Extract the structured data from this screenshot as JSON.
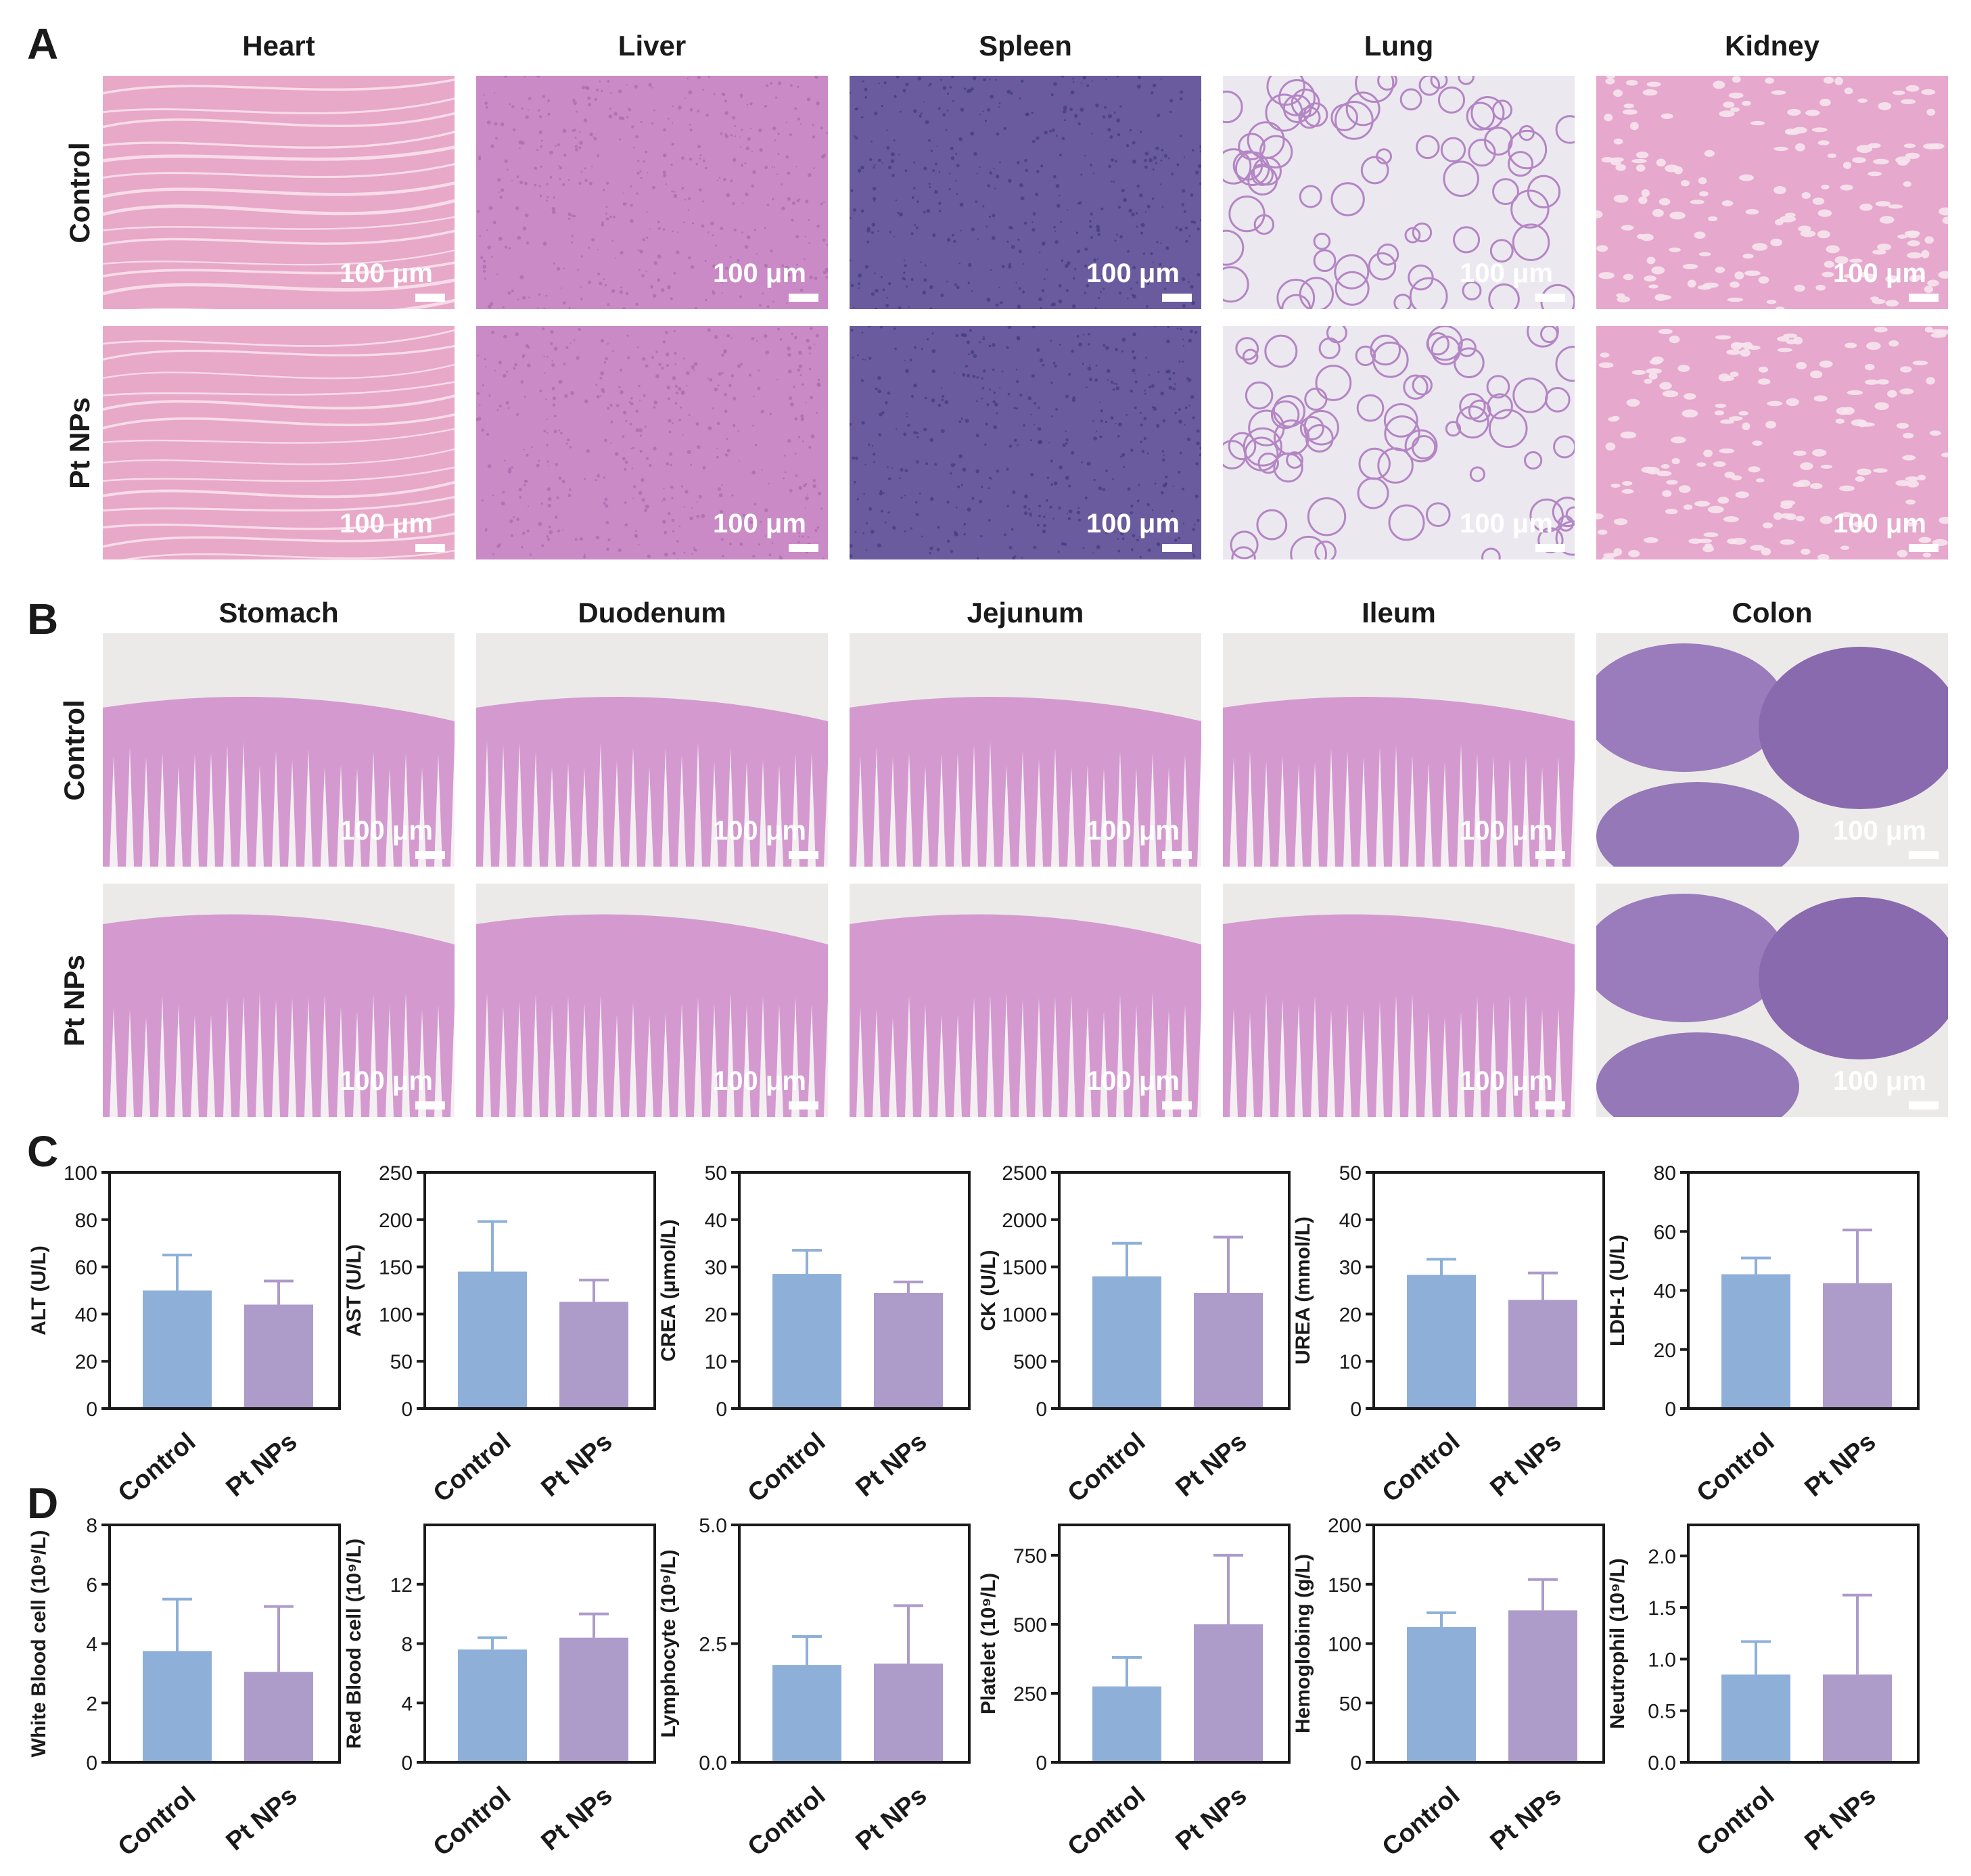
{
  "panel_letters": [
    "A",
    "B",
    "C",
    "D"
  ],
  "histology_A": {
    "organs": [
      "Heart",
      "Liver",
      "Spleen",
      "Lung",
      "Kidney"
    ],
    "rows": [
      "Control",
      "Pt NPs"
    ],
    "scale_label": "100 μm"
  },
  "histology_B": {
    "organs": [
      "Stomach",
      "Duodenum",
      "Jejunum",
      "Ileum",
      "Colon"
    ],
    "rows": [
      "Control",
      "Pt NPs"
    ],
    "scale_label": "100 μm"
  },
  "colors": {
    "control": "#8eb0d8",
    "pt_nps": "#ad9bca"
  },
  "chart_data": [
    {
      "type": "bar",
      "ylabel": "ALT (U/L)",
      "categories": [
        "Control",
        "Pt NPs"
      ],
      "values": [
        50,
        44
      ],
      "errors": [
        15,
        10
      ],
      "ylim": [
        0,
        100
      ],
      "yticks": [
        0,
        20,
        40,
        60,
        80,
        100
      ]
    },
    {
      "type": "bar",
      "ylabel": "AST (U/L)",
      "categories": [
        "Control",
        "Pt NPs"
      ],
      "values": [
        145,
        113
      ],
      "errors": [
        53,
        23
      ],
      "ylim": [
        0,
        250
      ],
      "yticks": [
        0,
        50,
        100,
        150,
        200,
        250
      ]
    },
    {
      "type": "bar",
      "ylabel": "CREA (μmol/L)",
      "categories": [
        "Control",
        "Pt NPs"
      ],
      "values": [
        28.5,
        24.5
      ],
      "errors": [
        5,
        2.3
      ],
      "ylim": [
        0,
        50
      ],
      "yticks": [
        0,
        10,
        20,
        30,
        40,
        50
      ]
    },
    {
      "type": "bar",
      "ylabel": "CK (U/L)",
      "categories": [
        "Control",
        "Pt NPs"
      ],
      "values": [
        1400,
        1225
      ],
      "errors": [
        350,
        590
      ],
      "ylim": [
        0,
        2500
      ],
      "yticks": [
        0,
        500,
        1000,
        1500,
        2000,
        2500
      ]
    },
    {
      "type": "bar",
      "ylabel": "UREA (mmol/L)",
      "categories": [
        "Control",
        "Pt NPs"
      ],
      "values": [
        28.3,
        23
      ],
      "errors": [
        3.3,
        5.7
      ],
      "ylim": [
        0,
        50
      ],
      "yticks": [
        0,
        10,
        20,
        30,
        40,
        50
      ]
    },
    {
      "type": "bar",
      "ylabel": "LDH-1 (U/L)",
      "categories": [
        "Control",
        "Pt NPs"
      ],
      "values": [
        45.5,
        42.5
      ],
      "errors": [
        5.5,
        18
      ],
      "ylim": [
        0,
        80
      ],
      "yticks": [
        0,
        20,
        40,
        60,
        80
      ]
    },
    {
      "type": "bar",
      "ylabel": "White Blood cell (10⁹/L)",
      "categories": [
        "Control",
        "Pt NPs"
      ],
      "values": [
        3.75,
        3.05
      ],
      "errors": [
        1.75,
        2.2
      ],
      "ylim": [
        0,
        8
      ],
      "yticks": [
        0,
        2,
        4,
        6,
        8
      ]
    },
    {
      "type": "bar",
      "ylabel": "Red Blood cell (10⁹/L)",
      "categories": [
        "Control",
        "Pt NPs"
      ],
      "values": [
        7.6,
        8.4
      ],
      "errors": [
        0.8,
        1.6
      ],
      "ylim": [
        0,
        16
      ],
      "yticks": [
        0,
        4,
        8,
        12
      ]
    },
    {
      "type": "bar",
      "ylabel": "Lymphocyte (10⁹/L)",
      "categories": [
        "Control",
        "Pt NPs"
      ],
      "values": [
        2.05,
        2.08
      ],
      "errors": [
        0.6,
        1.22
      ],
      "ylim": [
        0,
        5
      ],
      "yticks": [
        0.0,
        2.5,
        5.0
      ],
      "tick_decimals": 1
    },
    {
      "type": "bar",
      "ylabel": "Platelet (10⁹/L)",
      "categories": [
        "Control",
        "Pt NPs"
      ],
      "values": [
        275,
        500
      ],
      "errors": [
        105,
        250
      ],
      "ylim": [
        0,
        860
      ],
      "yticks": [
        0,
        250,
        500,
        750
      ]
    },
    {
      "type": "bar",
      "ylabel": "Hemoglobing (g/L)",
      "categories": [
        "Control",
        "Pt NPs"
      ],
      "values": [
        114,
        128
      ],
      "errors": [
        12,
        26
      ],
      "ylim": [
        0,
        200
      ],
      "yticks": [
        0,
        50,
        100,
        150,
        200
      ]
    },
    {
      "type": "bar",
      "ylabel": "Neutrophil (10⁹/L)",
      "categories": [
        "Control",
        "Pt NPs"
      ],
      "values": [
        0.85,
        0.85
      ],
      "errors": [
        0.32,
        0.77
      ],
      "ylim": [
        0,
        2.3
      ],
      "yticks": [
        0.0,
        0.5,
        1.0,
        1.5,
        2.0
      ],
      "tick_decimals": 1
    }
  ]
}
